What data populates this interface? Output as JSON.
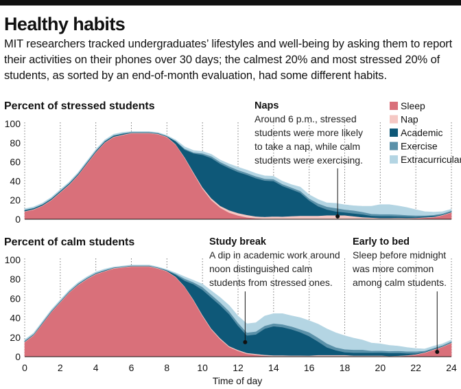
{
  "title": "Healthy habits",
  "subtitle": "MIT researchers tracked undergraduates’ lifestyles and well-being by asking them to report their activities on their phones over 30 days; the calmest 20% and most stressed 20% of students, as sorted by an end-of-month evaluation, had some different habits.",
  "colors": {
    "Sleep": "#d9707a",
    "Nap": "#f5c8c4",
    "Academic": "#0e5878",
    "Exercise": "#5b91a9",
    "Extracurricular": "#b4d5e3"
  },
  "chart_data": [
    {
      "type": "area",
      "stacked": true,
      "title": "Percent of stressed students",
      "xlabel": "Time of day",
      "ylabel": "",
      "xlim": [
        0,
        24
      ],
      "ylim": [
        0,
        100
      ],
      "x_ticks": [
        0,
        2,
        4,
        6,
        8,
        10,
        12,
        14,
        16,
        18,
        20,
        22,
        24
      ],
      "y_ticks": [
        0,
        20,
        40,
        60,
        80,
        100
      ],
      "grid": "vertical dotted",
      "legend": "top-right",
      "x": [
        0,
        0.5,
        1,
        1.5,
        2,
        2.5,
        3,
        3.5,
        4,
        4.5,
        5,
        5.5,
        6,
        6.5,
        7,
        7.5,
        8,
        8.5,
        9,
        9.5,
        10,
        10.5,
        11,
        11.5,
        12,
        12.5,
        13,
        13.5,
        14,
        14.5,
        15,
        15.5,
        16,
        16.5,
        17,
        17.5,
        18,
        18.5,
        19,
        19.5,
        20,
        20.5,
        21,
        21.5,
        22,
        22.5,
        23,
        23.5,
        24
      ],
      "series": [
        {
          "name": "Sleep",
          "values": [
            8,
            10,
            14,
            20,
            28,
            36,
            46,
            58,
            70,
            80,
            86,
            88,
            90,
            90,
            90,
            89,
            86,
            78,
            64,
            48,
            32,
            20,
            12,
            7,
            4,
            2,
            1,
            0.5,
            0.5,
            0.3,
            0.3,
            0.2,
            0.2,
            0.2,
            0.2,
            0.2,
            0.2,
            0.2,
            0.2,
            0.2,
            0.3,
            0.3,
            0.5,
            0.5,
            1,
            1.5,
            2,
            4,
            7
          ]
        },
        {
          "name": "Nap",
          "values": [
            0.5,
            0.5,
            0.5,
            0.5,
            0.5,
            0.5,
            0.5,
            0.5,
            0.5,
            0.5,
            0.5,
            0.5,
            0.5,
            0.5,
            0.5,
            0.5,
            0.5,
            0.5,
            0.8,
            1,
            1.5,
            2,
            2,
            2.5,
            2.5,
            2.5,
            2,
            2,
            2.5,
            2.5,
            3,
            3.5,
            3.5,
            3.5,
            4,
            4,
            4,
            3,
            2,
            1.5,
            1,
            1,
            1,
            0.8,
            0.5,
            0.5,
            0.5,
            0.5,
            0.5
          ]
        },
        {
          "name": "Academic",
          "values": [
            1,
            1,
            1,
            1,
            1,
            1,
            1,
            1,
            1,
            1,
            1,
            1,
            0.5,
            0.5,
            0.5,
            0.5,
            0.5,
            3,
            8,
            20,
            34,
            42,
            44,
            44,
            43,
            42,
            40,
            38,
            37,
            32,
            28,
            24,
            16,
            10,
            6,
            4,
            3,
            3,
            3,
            2,
            2,
            2,
            1.5,
            1.5,
            1,
            1,
            1,
            0.5,
            0.5
          ]
        },
        {
          "name": "Exercise",
          "values": [
            0.5,
            0.5,
            0.5,
            0.5,
            0.5,
            0.5,
            0.5,
            0.5,
            0.5,
            0.5,
            0.5,
            0.5,
            0.3,
            0.3,
            0.3,
            0.3,
            0.3,
            0.5,
            1,
            1,
            1.5,
            2,
            2,
            2,
            2,
            2,
            2,
            2,
            2,
            2,
            2,
            2,
            2,
            3,
            3,
            3.5,
            3,
            3,
            2.5,
            2,
            2,
            2,
            2,
            1.5,
            1.5,
            1,
            1,
            1,
            1
          ]
        },
        {
          "name": "Extracurricular",
          "values": [
            1,
            1,
            1,
            1,
            1,
            1,
            1,
            1,
            1,
            1,
            1,
            1,
            0.5,
            0.5,
            0.5,
            0.5,
            0.5,
            1,
            2,
            2,
            2,
            2,
            2,
            2.5,
            3,
            3,
            3,
            3,
            3,
            3,
            3,
            4,
            4,
            4,
            4,
            5,
            5,
            5,
            6,
            8,
            10,
            10,
            9,
            8,
            6,
            4,
            3,
            2,
            1.5
          ]
        }
      ]
    },
    {
      "type": "area",
      "stacked": true,
      "title": "Percent of calm students",
      "xlabel": "Time of day",
      "ylabel": "",
      "xlim": [
        0,
        24
      ],
      "ylim": [
        0,
        100
      ],
      "x_ticks": [
        0,
        2,
        4,
        6,
        8,
        10,
        12,
        14,
        16,
        18,
        20,
        22,
        24
      ],
      "y_ticks": [
        0,
        20,
        40,
        60,
        80,
        100
      ],
      "grid": "vertical dotted",
      "x": [
        0,
        0.5,
        1,
        1.5,
        2,
        2.5,
        3,
        3.5,
        4,
        4.5,
        5,
        5.5,
        6,
        6.5,
        7,
        7.5,
        8,
        8.5,
        9,
        9.5,
        10,
        10.5,
        11,
        11.5,
        12,
        12.5,
        13,
        13.5,
        14,
        14.5,
        15,
        15.5,
        16,
        16.5,
        17,
        17.5,
        18,
        18.5,
        19,
        19.5,
        20,
        20.5,
        21,
        21.5,
        22,
        22.5,
        23,
        23.5,
        24
      ],
      "series": [
        {
          "name": "Sleep",
          "values": [
            15,
            22,
            34,
            46,
            56,
            66,
            74,
            80,
            85,
            88,
            91,
            92,
            93,
            93,
            93,
            91,
            88,
            82,
            72,
            58,
            42,
            28,
            18,
            10,
            6,
            3,
            2,
            1,
            0.5,
            0.5,
            0.3,
            0.3,
            0.2,
            0.2,
            0.2,
            0.2,
            0.2,
            0.2,
            0.2,
            0.2,
            0.3,
            0.3,
            0.5,
            1,
            2,
            4,
            7,
            10,
            14
          ]
        },
        {
          "name": "Nap",
          "values": [
            0.5,
            0.5,
            0.5,
            0.5,
            0.5,
            0.5,
            0.5,
            0.5,
            0.5,
            0.5,
            0.5,
            0.5,
            0.5,
            0.5,
            0.5,
            0.5,
            0.5,
            0.5,
            0.5,
            0.8,
            1,
            1,
            1,
            1,
            1,
            1,
            1,
            1,
            1,
            1,
            1,
            1,
            1,
            1.5,
            1.5,
            1.5,
            1.5,
            1,
            1,
            1,
            1,
            0.5,
            0.5,
            0.5,
            0.5,
            0.5,
            0.5,
            0.5,
            0.5
          ]
        },
        {
          "name": "Academic",
          "values": [
            0.5,
            0.5,
            0.5,
            0.5,
            0.5,
            0.5,
            0.5,
            0.5,
            0.5,
            0.5,
            0.3,
            0.3,
            0.3,
            0.3,
            0.3,
            0.3,
            0.5,
            2,
            6,
            16,
            26,
            32,
            34,
            33,
            25,
            18,
            20,
            27,
            30,
            29,
            27,
            24,
            20,
            14,
            8,
            5,
            3,
            3,
            3,
            3,
            3,
            3,
            3,
            2,
            1,
            0.5,
            0.5,
            0.3,
            0.3
          ]
        },
        {
          "name": "Exercise",
          "values": [
            0.5,
            0.5,
            0.5,
            0.5,
            0.5,
            0.5,
            0.5,
            0.5,
            0.5,
            0.5,
            0.3,
            0.3,
            0.3,
            0.3,
            0.3,
            0.3,
            0.5,
            1,
            2,
            2,
            3,
            3,
            3,
            3,
            3,
            3,
            3,
            3,
            3,
            3,
            3,
            3,
            4,
            4,
            4,
            3,
            3,
            3,
            3,
            2,
            2,
            2,
            2,
            2,
            2,
            1,
            1,
            1,
            1
          ]
        },
        {
          "name": "Extracurricular",
          "values": [
            1,
            1,
            1,
            1,
            1,
            1,
            1,
            1,
            1,
            1,
            0.5,
            0.5,
            0.5,
            0.5,
            0.5,
            0.5,
            0.5,
            1,
            2,
            2,
            3,
            4,
            5,
            6,
            7,
            9,
            9,
            10,
            10,
            11,
            11,
            12,
            12,
            14,
            15,
            15,
            14,
            12,
            10,
            8,
            7,
            6,
            5,
            4,
            3,
            2,
            2,
            1.5,
            1.5
          ]
        }
      ]
    }
  ],
  "annotations": {
    "naps": {
      "title": "Naps",
      "lines": [
        "Around 6 p.m., stressed",
        "students were more likely",
        "to take a nap, while calm",
        "students were exercising."
      ],
      "x": 17.6,
      "y": 3
    },
    "study_break": {
      "title": "Study break",
      "lines": [
        "A dip in academic work around",
        "noon distinguished calm",
        "students from stressed ones."
      ],
      "x": 12.4,
      "y": 15
    },
    "early_to_bed": {
      "title": "Early to bed",
      "lines": [
        "Sleep before midnight",
        "was more common",
        "among calm students."
      ],
      "x": 23.2,
      "y": 5
    }
  },
  "x_axis_title": "Time of day"
}
